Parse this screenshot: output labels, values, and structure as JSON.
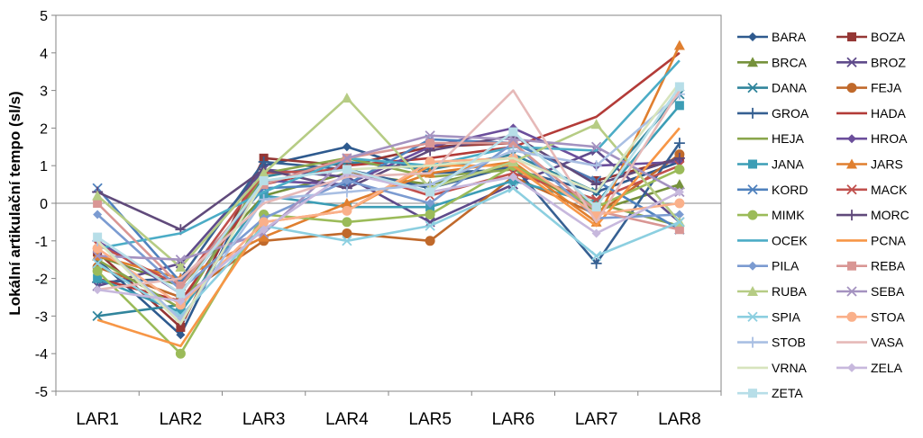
{
  "chart_data": {
    "type": "line",
    "title": "",
    "xlabel": "",
    "ylabel": "Lokální artikulační tempo (sl/s)",
    "categories": [
      "LAR1",
      "LAR2",
      "LAR3",
      "LAR4",
      "LAR5",
      "LAR6",
      "LAR7",
      "LAR8"
    ],
    "ylim": [
      -5,
      5
    ],
    "yticks": [
      5,
      4,
      3,
      2,
      1,
      0,
      -1,
      -2,
      -3,
      -4,
      -5
    ],
    "grid": false,
    "legend": "right",
    "series": [
      {
        "name": "BARA",
        "color": "#2e5a8e",
        "marker": "diamond",
        "values": [
          -1.5,
          -3.5,
          1.0,
          1.5,
          0.8,
          0.9,
          0.3,
          1.1
        ]
      },
      {
        "name": "BOZA",
        "color": "#953735",
        "marker": "square",
        "values": [
          -1.3,
          -3.3,
          1.2,
          1.0,
          1.5,
          1.6,
          0.6,
          1.2
        ]
      },
      {
        "name": "BRCA",
        "color": "#76923c",
        "marker": "triangle",
        "values": [
          -1.4,
          -2.2,
          0.2,
          0.8,
          0.5,
          1.0,
          -0.2,
          0.5
        ]
      },
      {
        "name": "BROZ",
        "color": "#5f4b8b",
        "marker": "x",
        "values": [
          -2.2,
          -1.6,
          0.9,
          0.7,
          -0.5,
          0.5,
          1.4,
          -0.5
        ]
      },
      {
        "name": "DANA",
        "color": "#31859c",
        "marker": "x",
        "values": [
          -3.0,
          -2.7,
          0.7,
          1.1,
          0.9,
          1.3,
          0.3,
          2.9
        ]
      },
      {
        "name": "FEJA",
        "color": "#c0692b",
        "marker": "circle",
        "values": [
          -1.7,
          -2.5,
          -1.0,
          -0.8,
          -1.0,
          0.7,
          -0.3,
          1.3
        ]
      },
      {
        "name": "GROA",
        "color": "#366092",
        "marker": "plus",
        "values": [
          -2.1,
          -2.0,
          1.1,
          0.9,
          0.4,
          1.0,
          -1.6,
          1.6
        ]
      },
      {
        "name": "HADA",
        "color": "#b33b38",
        "marker": "none",
        "values": [
          -2.0,
          -2.6,
          0.5,
          1.0,
          1.2,
          1.5,
          2.3,
          4.0
        ]
      },
      {
        "name": "HEJA",
        "color": "#8aa64c",
        "marker": "none",
        "values": [
          -1.5,
          -2.8,
          0.8,
          1.2,
          0.7,
          0.9,
          0.0,
          -0.6
        ]
      },
      {
        "name": "HROA",
        "color": "#6b4e9b",
        "marker": "diamond",
        "values": [
          -1.0,
          -2.4,
          0.6,
          0.5,
          1.5,
          2.0,
          1.0,
          1.1
        ]
      },
      {
        "name": "JANA",
        "color": "#3c9db5",
        "marker": "square",
        "values": [
          -2.0,
          -2.9,
          0.2,
          -0.1,
          -0.1,
          0.6,
          0.0,
          2.6
        ]
      },
      {
        "name": "JARS",
        "color": "#e07f2f",
        "marker": "triangle",
        "values": [
          -1.4,
          -2.0,
          -0.9,
          0.0,
          0.8,
          1.1,
          -0.5,
          4.2
        ]
      },
      {
        "name": "KORD",
        "color": "#4f81bd",
        "marker": "x",
        "values": [
          0.4,
          -2.1,
          0.4,
          0.5,
          1.7,
          1.6,
          0.6,
          -0.7
        ]
      },
      {
        "name": "MACK",
        "color": "#c0504d",
        "marker": "x",
        "values": [
          -1.1,
          -2.2,
          0.8,
          0.9,
          0.2,
          0.8,
          0.1,
          1.0
        ]
      },
      {
        "name": "MIMK",
        "color": "#9bbb59",
        "marker": "circle",
        "values": [
          -1.8,
          -4.0,
          -0.3,
          -0.5,
          -0.3,
          1.0,
          -0.1,
          0.9
        ]
      },
      {
        "name": "MORC",
        "color": "#604a7b",
        "marker": "plus",
        "values": [
          0.3,
          -0.7,
          0.9,
          0.4,
          1.4,
          1.8,
          0.5,
          1.2
        ]
      },
      {
        "name": "OCEK",
        "color": "#4bacc6",
        "marker": "none",
        "values": [
          -1.2,
          -0.8,
          0.3,
          1.2,
          1.0,
          1.5,
          1.4,
          3.8
        ]
      },
      {
        "name": "PCNA",
        "color": "#f79646",
        "marker": "none",
        "values": [
          -3.1,
          -3.8,
          -0.5,
          -0.2,
          1.0,
          1.0,
          -0.6,
          2.0
        ]
      },
      {
        "name": "PILA",
        "color": "#7b9bd1",
        "marker": "diamond",
        "values": [
          -0.3,
          -2.3,
          -0.4,
          0.6,
          0.0,
          1.6,
          -0.4,
          -0.3
        ]
      },
      {
        "name": "REBA",
        "color": "#d99694",
        "marker": "square",
        "values": [
          0.0,
          -2.2,
          0.5,
          1.2,
          1.6,
          1.6,
          -0.2,
          -0.7
        ]
      },
      {
        "name": "RUBA",
        "color": "#b6cc84",
        "marker": "triangle",
        "values": [
          0.2,
          -1.7,
          0.8,
          2.8,
          0.4,
          1.1,
          2.1,
          -0.5
        ]
      },
      {
        "name": "SEBA",
        "color": "#a492c0",
        "marker": "x",
        "values": [
          -1.4,
          -1.5,
          -0.8,
          1.2,
          1.8,
          1.7,
          1.5,
          0.3
        ]
      },
      {
        "name": "SPIA",
        "color": "#8ccfe0",
        "marker": "x",
        "values": [
          -1.6,
          -3.0,
          -0.6,
          -1.0,
          -0.6,
          0.4,
          -1.4,
          -0.5
        ]
      },
      {
        "name": "STOA",
        "color": "#fab08a",
        "marker": "circle",
        "values": [
          -1.2,
          -2.7,
          -0.5,
          -0.2,
          1.1,
          1.2,
          -0.3,
          0.0
        ]
      },
      {
        "name": "STOB",
        "color": "#a9bfe3",
        "marker": "plus",
        "values": [
          -1.0,
          -3.1,
          0.1,
          0.3,
          0.5,
          1.4,
          1.0,
          2.9
        ]
      },
      {
        "name": "VASA",
        "color": "#e6b9b8",
        "marker": "none",
        "values": [
          -2.3,
          -2.0,
          0.0,
          0.7,
          0.8,
          3.0,
          -0.5,
          3.0
        ]
      },
      {
        "name": "VRNA",
        "color": "#d7e4bd",
        "marker": "none",
        "values": [
          -1.0,
          -3.2,
          0.6,
          0.9,
          1.0,
          1.2,
          0.3,
          3.2
        ]
      },
      {
        "name": "ZELA",
        "color": "#c7b8dd",
        "marker": "diamond",
        "values": [
          -2.3,
          -2.6,
          -0.7,
          0.8,
          0.3,
          0.7,
          -0.8,
          0.3
        ]
      },
      {
        "name": "ZETA",
        "color": "#b7dee8",
        "marker": "square",
        "values": [
          -0.9,
          -2.4,
          0.6,
          0.9,
          0.3,
          1.9,
          -0.1,
          3.1
        ]
      }
    ]
  }
}
